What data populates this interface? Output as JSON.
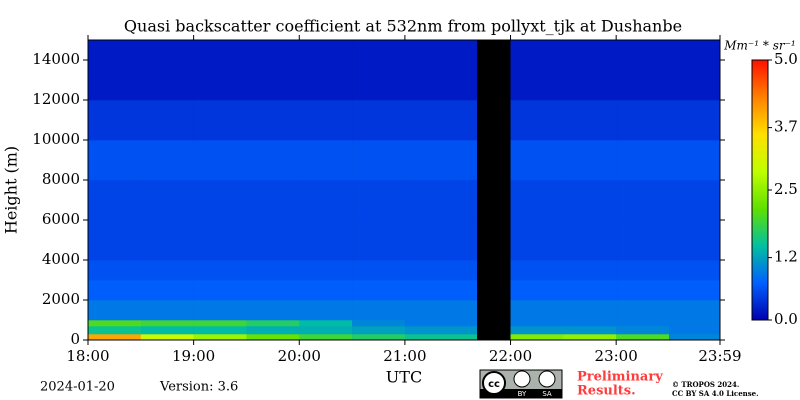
{
  "chart_data": {
    "type": "heatmap",
    "title": "Quasi backscatter coefficient at 532nm from pollyxt_tjk at Dushanbe",
    "y_label": "Height (m)",
    "x_label": "UTC",
    "colorbar_label": "Mm⁻¹ * sr⁻¹",
    "x_bins": [
      18,
      18.5,
      19,
      19.5,
      20,
      20.5,
      21,
      21.53,
      21.68,
      22,
      22.5,
      23,
      23.5,
      23.983
    ],
    "y_bins": [
      0,
      300,
      700,
      1000,
      2000,
      3000,
      4000,
      6000,
      8000,
      10000,
      12000,
      15000
    ],
    "values": [
      [
        4.0,
        3.0,
        2.6,
        2.2,
        1.9,
        1.7,
        1.5,
        1.5,
        null,
        2.4,
        2.5,
        2.0,
        1.0
      ],
      [
        1.5,
        1.4,
        1.4,
        1.3,
        1.3,
        1.2,
        1.1,
        1.1,
        null,
        1.1,
        1.1,
        1.0,
        0.9
      ],
      [
        2.0,
        1.9,
        1.9,
        1.7,
        1.4,
        1.0,
        0.9,
        0.9,
        null,
        0.9,
        0.9,
        0.9,
        0.9
      ],
      [
        0.9,
        0.9,
        0.9,
        0.9,
        0.9,
        0.9,
        0.9,
        0.9,
        null,
        0.9,
        0.9,
        0.9,
        0.9
      ],
      [
        0.7,
        0.7,
        0.7,
        0.7,
        0.7,
        0.7,
        0.7,
        0.7,
        null,
        0.7,
        0.7,
        0.7,
        0.7
      ],
      [
        0.6,
        0.6,
        0.6,
        0.6,
        0.6,
        0.6,
        0.6,
        0.6,
        null,
        0.6,
        0.6,
        0.6,
        0.6
      ],
      [
        0.5,
        0.5,
        0.5,
        0.5,
        0.5,
        0.5,
        0.5,
        0.5,
        null,
        0.5,
        0.5,
        0.5,
        0.5
      ],
      [
        0.5,
        0.5,
        0.5,
        0.5,
        0.5,
        0.5,
        0.5,
        0.5,
        null,
        0.5,
        0.5,
        0.5,
        0.5
      ],
      [
        0.6,
        0.6,
        0.6,
        0.6,
        0.6,
        0.6,
        0.6,
        0.6,
        null,
        0.6,
        0.6,
        0.6,
        0.6
      ],
      [
        0.4,
        0.4,
        0.4,
        0.4,
        0.4,
        0.4,
        0.4,
        0.4,
        null,
        0.4,
        0.4,
        0.4,
        0.4
      ],
      [
        0.2,
        0.2,
        0.2,
        0.2,
        0.2,
        0.2,
        0.2,
        0.2,
        null,
        0.2,
        0.2,
        0.2,
        0.2
      ]
    ],
    "xlim": [
      18,
      23.983
    ],
    "xticks": [
      {
        "value": 18,
        "label": "18:00"
      },
      {
        "value": 19,
        "label": "19:00"
      },
      {
        "value": 20,
        "label": "20:00"
      },
      {
        "value": 21,
        "label": "21:00"
      },
      {
        "value": 22,
        "label": "22:00"
      },
      {
        "value": 23,
        "label": "23:00"
      },
      {
        "value": 23.983,
        "label": "23:59"
      }
    ],
    "ylim": [
      0,
      15000
    ],
    "yticks": [
      0,
      2000,
      4000,
      6000,
      8000,
      10000,
      12000,
      14000
    ],
    "clim": [
      0,
      5
    ],
    "cticks": [
      {
        "value": 0,
        "label": "0.0"
      },
      1.2,
      2.5,
      3.7,
      {
        "value": 5,
        "label": "5.0"
      }
    ],
    "colormap": [
      "#0000b0",
      "#0060ff",
      "#00c0a0",
      "#60e000",
      "#c0ff00",
      "#ffe000",
      "#ff8000",
      "#ff1000"
    ],
    "null_color": "#000000"
  },
  "annotations": {
    "date": "2024-01-20",
    "version": "Version: 3.6",
    "preliminary": [
      "Preliminary",
      "Results."
    ],
    "license": [
      "© TROPOS 2024.",
      "CC BY SA 4.0 License."
    ],
    "logo": [
      "cc",
      "BY",
      "SA"
    ]
  }
}
